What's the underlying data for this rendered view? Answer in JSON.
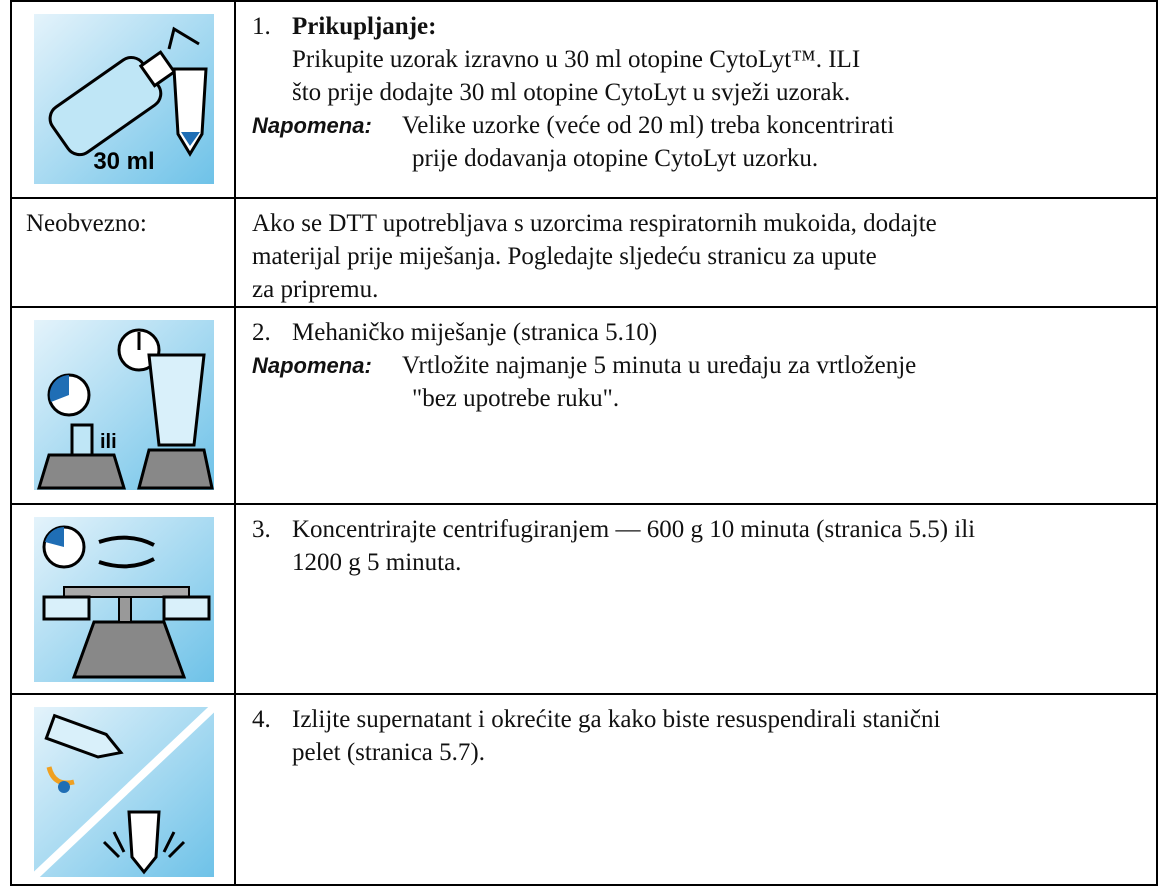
{
  "rows": [
    {
      "icon_label": "30 ml",
      "number": "1.",
      "heading": "Prikupljanje:",
      "lines": [
        "Prikupite uzorak izravno u 30 ml otopine CytoLyt™. ILI",
        "što prije dodajte 30 ml otopine CytoLyt u svježi uzorak."
      ],
      "note": {
        "label": "Napomena:",
        "lines": [
          "Velike uzorke (veće od 20 ml) treba koncentrirati",
          "prije dodavanja otopine CytoLyt uzorku."
        ]
      }
    },
    {
      "label": "Neobvezno:",
      "lines": [
        "Ako se DTT upotrebljava s uzorcima respiratornih mukoida, dodajte",
        "materijal prije miješanja. Pogledajte sljedeću stranicu za upute",
        "za pripremu."
      ]
    },
    {
      "icon_label": "ili",
      "number": "2.",
      "lines": [
        "Mehaničko miješanje (stranica 5.10)"
      ],
      "note": {
        "label": "Napomena:",
        "lines": [
          "Vrtložite najmanje 5 minuta u uređaju za vrtloženje",
          "\"bez upotrebe ruku\"."
        ]
      }
    },
    {
      "number": "3.",
      "lines": [
        "Koncentrirajte centrifugiranjem — 600 g 10 minuta (stranica 5.5) ili",
        "1200 g 5 minuta."
      ]
    },
    {
      "number": "4.",
      "lines": [
        "Izlijte supernatant i okrećite ga kako biste resuspendirali stanični",
        "pelet (stranica 5.7)."
      ]
    }
  ]
}
